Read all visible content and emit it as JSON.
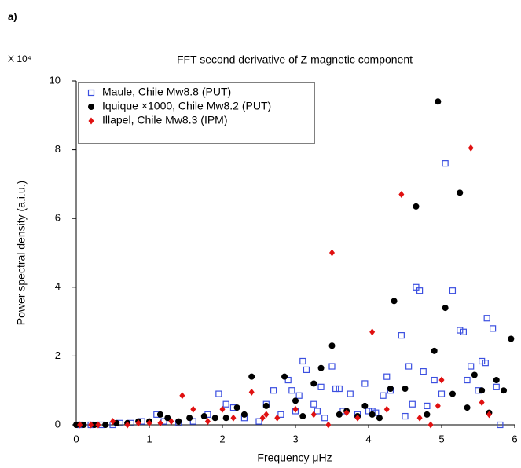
{
  "panel_label": "a)",
  "chart_data": {
    "type": "scatter",
    "title": "FFT second derivative of Z magnetic component",
    "y_multiplier": "X 10⁴",
    "xlabel": "Frequency μHz",
    "ylabel": "Power spectral density (a.i.u.)",
    "xlim": [
      0,
      6
    ],
    "xticks": [
      0,
      1,
      2,
      3,
      4,
      5,
      6
    ],
    "ylim": [
      0,
      10
    ],
    "yticks": [
      0,
      2,
      4,
      6,
      8,
      10
    ],
    "legend": "upper left",
    "series": [
      {
        "name": "Maule, Chile Mw8.8 (PUT)",
        "color": "#3b4fe0",
        "marker": "square",
        "x": [
          0.05,
          0.2,
          0.35,
          0.5,
          0.6,
          0.75,
          0.9,
          1.1,
          1.2,
          1.4,
          1.6,
          1.8,
          1.95,
          2.05,
          2.15,
          2.3,
          2.5,
          2.6,
          2.7,
          2.8,
          2.9,
          2.95,
          3.0,
          3.05,
          3.1,
          3.15,
          3.25,
          3.3,
          3.35,
          3.4,
          3.5,
          3.55,
          3.6,
          3.65,
          3.75,
          3.85,
          3.95,
          4.0,
          4.05,
          4.1,
          4.2,
          4.25,
          4.3,
          4.45,
          4.5,
          4.55,
          4.6,
          4.65,
          4.7,
          4.75,
          4.8,
          4.9,
          5.0,
          5.05,
          5.15,
          5.25,
          5.3,
          5.35,
          5.4,
          5.5,
          5.55,
          5.6,
          5.62,
          5.7,
          5.75,
          5.8
        ],
        "values": [
          0,
          0,
          0,
          0,
          0.05,
          0.05,
          0.1,
          0.3,
          0.1,
          0.05,
          0.1,
          0.3,
          0.9,
          0.6,
          0.5,
          0.2,
          0.1,
          0.6,
          1.0,
          0.3,
          1.3,
          1.0,
          0.4,
          0.85,
          1.85,
          1.6,
          0.6,
          0.4,
          1.1,
          0.2,
          1.7,
          1.05,
          1.05,
          0.4,
          0.9,
          0.3,
          1.2,
          0.4,
          0.4,
          0.35,
          0.85,
          1.4,
          1.0,
          2.6,
          0.25,
          1.7,
          0.6,
          4.0,
          3.9,
          1.55,
          0.55,
          1.3,
          0.9,
          7.6,
          3.9,
          2.75,
          2.7,
          1.3,
          1.7,
          1.0,
          1.85,
          1.8,
          3.1,
          2.8,
          1.1,
          0
        ]
      },
      {
        "name": "Iquique ×1000, Chile Mw8.2 (PUT)",
        "color": "#000000",
        "marker": "circle",
        "x": [
          0,
          0.1,
          0.25,
          0.4,
          0.55,
          0.7,
          0.85,
          1.0,
          1.15,
          1.25,
          1.4,
          1.55,
          1.75,
          1.9,
          2.05,
          2.2,
          2.3,
          2.4,
          2.6,
          2.85,
          3.0,
          3.1,
          3.25,
          3.35,
          3.5,
          3.6,
          3.7,
          3.85,
          3.95,
          4.05,
          4.15,
          4.3,
          4.35,
          4.5,
          4.65,
          4.8,
          4.9,
          4.95,
          5.05,
          5.15,
          5.25,
          5.35,
          5.45,
          5.55,
          5.65,
          5.75,
          5.85,
          5.95
        ],
        "values": [
          0,
          0,
          0,
          0,
          0.05,
          0.05,
          0.1,
          0.1,
          0.3,
          0.2,
          0.1,
          0.2,
          0.25,
          0.2,
          0.2,
          0.5,
          0.3,
          1.4,
          0.55,
          1.4,
          0.7,
          0.25,
          1.2,
          1.65,
          2.3,
          0.3,
          0.4,
          0.25,
          0.55,
          0.3,
          0.2,
          1.05,
          3.6,
          1.05,
          6.35,
          0.3,
          2.15,
          9.4,
          3.4,
          0.9,
          6.75,
          0.5,
          1.45,
          1.0,
          0.35,
          1.3,
          1.0,
          2.5
        ]
      },
      {
        "name": "Illapel, Chile Mw8.3  (IPM)",
        "color": "#e01010",
        "marker": "diamond",
        "x": [
          0.05,
          0.2,
          0.3,
          0.5,
          0.7,
          0.85,
          1.0,
          1.15,
          1.3,
          1.45,
          1.6,
          1.8,
          2.0,
          2.15,
          2.4,
          2.55,
          2.6,
          2.75,
          3.0,
          3.25,
          3.45,
          3.5,
          3.7,
          3.85,
          4.05,
          4.25,
          4.45,
          4.7,
          4.85,
          4.95,
          5.0,
          5.4,
          5.55,
          5.65
        ],
        "values": [
          0,
          0,
          0,
          0.1,
          0,
          0.05,
          0.05,
          0.05,
          0.1,
          0.85,
          0.45,
          0.1,
          0.45,
          0.2,
          0.95,
          0.2,
          0.3,
          0.2,
          0.45,
          0.3,
          0,
          5.0,
          0.35,
          0.2,
          2.7,
          0.45,
          6.7,
          0.2,
          0,
          0.55,
          1.3,
          8.05,
          0.65,
          0.3
        ]
      }
    ]
  }
}
